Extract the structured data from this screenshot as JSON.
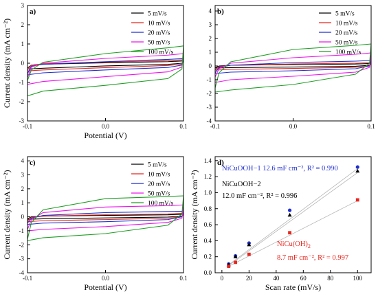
{
  "colors": {
    "s5": "#000000",
    "s10": "#e8261e",
    "s20": "#1f2fd1",
    "s50": "#ee11ee",
    "s100": "#1e9e22",
    "blue": "#1f2fd1",
    "red": "#e8261e",
    "black": "#000000"
  },
  "chart_data": [
    {
      "panel": "a)",
      "type": "line",
      "xlabel": "Potential (V)",
      "ylabel": "Current density (mA cm⁻²)",
      "xlim": [
        -0.1,
        0.1
      ],
      "ylim": [
        -3,
        3
      ],
      "xticks": [
        -0.1,
        0.0,
        0.1
      ],
      "xtick_labels": [
        "-0.1",
        "0.0",
        "0.1"
      ],
      "yticks": [
        -3,
        -2,
        -1,
        0,
        1,
        2,
        3
      ],
      "legend_position": "top-right",
      "series": [
        {
          "name": "5 mV/s",
          "color_key": "s5",
          "upper": [
            [
              -0.1,
              -0.25
            ],
            [
              -0.095,
              -0.1
            ],
            [
              -0.08,
              -0.05
            ],
            [
              0.0,
              0.02
            ],
            [
              0.08,
              0.08
            ],
            [
              0.1,
              0.12
            ]
          ],
          "lower": [
            [
              -0.1,
              -0.3
            ],
            [
              -0.08,
              -0.26
            ],
            [
              0.0,
              -0.14
            ],
            [
              0.08,
              -0.06
            ],
            [
              0.098,
              0.0
            ],
            [
              0.1,
              0.12
            ]
          ]
        },
        {
          "name": "10 mV/s",
          "color_key": "s10",
          "upper": [
            [
              -0.1,
              -0.35
            ],
            [
              -0.095,
              -0.1
            ],
            [
              -0.08,
              -0.03
            ],
            [
              0.0,
              0.06
            ],
            [
              0.08,
              0.13
            ],
            [
              0.1,
              0.18
            ]
          ],
          "lower": [
            [
              -0.1,
              -0.4
            ],
            [
              -0.08,
              -0.35
            ],
            [
              0.0,
              -0.23
            ],
            [
              0.08,
              -0.12
            ],
            [
              0.098,
              -0.05
            ],
            [
              0.1,
              0.18
            ]
          ]
        },
        {
          "name": "20 mV/s",
          "color_key": "s20",
          "upper": [
            [
              -0.1,
              -0.55
            ],
            [
              -0.095,
              -0.15
            ],
            [
              -0.08,
              -0.06
            ],
            [
              0.0,
              0.08
            ],
            [
              0.08,
              0.2
            ],
            [
              0.1,
              0.24
            ]
          ],
          "lower": [
            [
              -0.1,
              -0.6
            ],
            [
              -0.08,
              -0.5
            ],
            [
              0.0,
              -0.35
            ],
            [
              0.08,
              -0.22
            ],
            [
              0.098,
              -0.1
            ],
            [
              0.1,
              0.24
            ]
          ]
        },
        {
          "name": "50 mV/s",
          "color_key": "s50",
          "upper": [
            [
              -0.1,
              -0.75
            ],
            [
              -0.095,
              -0.2
            ],
            [
              -0.08,
              0.0
            ],
            [
              0.0,
              0.25
            ],
            [
              0.08,
              0.42
            ],
            [
              0.1,
              0.5
            ]
          ],
          "lower": [
            [
              -0.1,
              -1.1
            ],
            [
              -0.08,
              -0.95
            ],
            [
              0.0,
              -0.7
            ],
            [
              0.08,
              -0.45
            ],
            [
              0.098,
              -0.2
            ],
            [
              0.1,
              0.5
            ]
          ]
        },
        {
          "name": "100 mV/s",
          "color_key": "s100",
          "upper": [
            [
              -0.1,
              -0.9
            ],
            [
              -0.095,
              -0.35
            ],
            [
              -0.08,
              0.05
            ],
            [
              0.0,
              0.5
            ],
            [
              0.08,
              0.8
            ],
            [
              0.1,
              0.9
            ]
          ],
          "lower": [
            [
              -0.1,
              -1.7
            ],
            [
              -0.08,
              -1.45
            ],
            [
              0.0,
              -1.15
            ],
            [
              0.08,
              -0.8
            ],
            [
              0.098,
              -0.3
            ],
            [
              0.1,
              0.9
            ]
          ]
        }
      ]
    },
    {
      "panel": "b)",
      "type": "line",
      "xlabel": "",
      "ylabel": "",
      "xlim": [
        -0.1,
        0.1
      ],
      "ylim": [
        -4,
        4.4
      ],
      "xticks": [
        -0.1,
        0.0,
        0.1
      ],
      "xtick_labels": [
        "-0.1",
        "0.0",
        "0.1"
      ],
      "yticks": [
        -4,
        -3,
        -2,
        -1,
        0,
        1,
        2,
        3,
        4
      ],
      "legend_position": "top-right",
      "series": [
        {
          "name": "5 mV/s",
          "color_key": "s5",
          "upper": [
            [
              -0.1,
              -0.15
            ],
            [
              -0.095,
              0.0
            ],
            [
              -0.08,
              0.05
            ],
            [
              0.0,
              0.1
            ],
            [
              0.08,
              0.14
            ],
            [
              0.1,
              0.18
            ]
          ],
          "lower": [
            [
              -0.1,
              -0.15
            ],
            [
              -0.08,
              -0.12
            ],
            [
              0.0,
              -0.08
            ],
            [
              0.08,
              -0.02
            ],
            [
              0.098,
              0.05
            ],
            [
              0.1,
              0.18
            ]
          ]
        },
        {
          "name": "10 mV/s",
          "color_key": "s10",
          "upper": [
            [
              -0.1,
              -0.3
            ],
            [
              -0.095,
              -0.05
            ],
            [
              -0.08,
              0.05
            ],
            [
              0.0,
              0.15
            ],
            [
              0.08,
              0.2
            ],
            [
              0.1,
              0.25
            ]
          ],
          "lower": [
            [
              -0.1,
              -0.3
            ],
            [
              -0.08,
              -0.25
            ],
            [
              0.0,
              -0.18
            ],
            [
              0.08,
              -0.1
            ],
            [
              0.098,
              0.0
            ],
            [
              0.1,
              0.25
            ]
          ]
        },
        {
          "name": "20 mV/s",
          "color_key": "s20",
          "upper": [
            [
              -0.1,
              -0.5
            ],
            [
              -0.095,
              -0.1
            ],
            [
              -0.08,
              0.05
            ],
            [
              0.0,
              0.25
            ],
            [
              0.08,
              0.35
            ],
            [
              0.1,
              0.4
            ]
          ],
          "lower": [
            [
              -0.1,
              -0.55
            ],
            [
              -0.08,
              -0.45
            ],
            [
              0.0,
              -0.35
            ],
            [
              0.08,
              -0.2
            ],
            [
              0.098,
              0.0
            ],
            [
              0.1,
              0.4
            ]
          ]
        },
        {
          "name": "50 mV/s",
          "color_key": "s50",
          "upper": [
            [
              -0.1,
              -0.8
            ],
            [
              -0.095,
              -0.2
            ],
            [
              -0.08,
              0.2
            ],
            [
              0.0,
              0.6
            ],
            [
              0.08,
              0.85
            ],
            [
              0.1,
              0.95
            ]
          ],
          "lower": [
            [
              -0.1,
              -1.2
            ],
            [
              -0.08,
              -1.0
            ],
            [
              0.0,
              -0.75
            ],
            [
              0.08,
              -0.45
            ],
            [
              0.098,
              -0.1
            ],
            [
              0.1,
              0.95
            ]
          ]
        },
        {
          "name": "100 mV/s",
          "color_key": "s100",
          "upper": [
            [
              -0.1,
              -1.6
            ],
            [
              -0.095,
              -0.5
            ],
            [
              -0.08,
              0.3
            ],
            [
              0.0,
              1.2
            ],
            [
              0.08,
              1.5
            ],
            [
              0.1,
              1.6
            ]
          ],
          "lower": [
            [
              -0.1,
              -1.9
            ],
            [
              -0.08,
              -1.75
            ],
            [
              0.0,
              -1.35
            ],
            [
              0.08,
              -0.6
            ],
            [
              0.098,
              0.2
            ],
            [
              0.1,
              1.6
            ]
          ]
        }
      ]
    },
    {
      "panel": "c)",
      "type": "line",
      "xlabel": "Potential (V)",
      "ylabel": "Current density (mA cm⁻²)",
      "xlim": [
        -0.1,
        0.1
      ],
      "ylim": [
        -4,
        4.3
      ],
      "xticks": [
        -0.1,
        0.0,
        0.1
      ],
      "xtick_labels": [
        "-0.1",
        "0.0",
        "0.1"
      ],
      "yticks": [
        -4,
        -3,
        -2,
        -1,
        0,
        1,
        2,
        3,
        4
      ],
      "legend_position": "top-right",
      "series": [
        {
          "name": "5 mV/s",
          "color_key": "s5",
          "upper": [
            [
              -0.1,
              -0.15
            ],
            [
              -0.095,
              0.0
            ],
            [
              -0.08,
              0.05
            ],
            [
              0.0,
              0.1
            ],
            [
              0.08,
              0.14
            ],
            [
              0.1,
              0.18
            ]
          ],
          "lower": [
            [
              -0.1,
              -0.18
            ],
            [
              -0.08,
              -0.14
            ],
            [
              0.0,
              -0.08
            ],
            [
              0.08,
              -0.02
            ],
            [
              0.098,
              0.05
            ],
            [
              0.1,
              0.18
            ]
          ]
        },
        {
          "name": "10 mV/s",
          "color_key": "s10",
          "upper": [
            [
              -0.1,
              -0.3
            ],
            [
              -0.095,
              -0.05
            ],
            [
              -0.08,
              0.05
            ],
            [
              0.0,
              0.15
            ],
            [
              0.08,
              0.2
            ],
            [
              0.1,
              0.25
            ]
          ],
          "lower": [
            [
              -0.1,
              -0.35
            ],
            [
              -0.08,
              -0.28
            ],
            [
              0.0,
              -0.2
            ],
            [
              0.08,
              -0.1
            ],
            [
              0.098,
              0.0
            ],
            [
              0.1,
              0.25
            ]
          ]
        },
        {
          "name": "20 mV/s",
          "color_key": "s20",
          "upper": [
            [
              -0.1,
              -0.45
            ],
            [
              -0.095,
              -0.1
            ],
            [
              -0.08,
              0.1
            ],
            [
              0.0,
              0.3
            ],
            [
              0.08,
              0.38
            ],
            [
              0.1,
              0.4
            ]
          ],
          "lower": [
            [
              -0.1,
              -0.55
            ],
            [
              -0.08,
              -0.45
            ],
            [
              0.0,
              -0.35
            ],
            [
              0.08,
              -0.2
            ],
            [
              0.098,
              0.0
            ],
            [
              0.1,
              0.4
            ]
          ]
        },
        {
          "name": "50 mV/s",
          "color_key": "s50",
          "upper": [
            [
              -0.1,
              -0.9
            ],
            [
              -0.095,
              -0.2
            ],
            [
              -0.08,
              0.3
            ],
            [
              0.0,
              0.7
            ],
            [
              0.08,
              0.8
            ],
            [
              0.1,
              0.85
            ]
          ],
          "lower": [
            [
              -0.1,
              -1.0
            ],
            [
              -0.08,
              -0.9
            ],
            [
              0.0,
              -0.7
            ],
            [
              0.08,
              -0.4
            ],
            [
              0.098,
              -0.1
            ],
            [
              0.1,
              0.85
            ]
          ]
        },
        {
          "name": "100 mV/s",
          "color_key": "s100",
          "upper": [
            [
              -0.1,
              -1.6
            ],
            [
              -0.095,
              -0.4
            ],
            [
              -0.08,
              0.5
            ],
            [
              0.0,
              1.3
            ],
            [
              0.08,
              1.45
            ],
            [
              0.1,
              1.5
            ]
          ],
          "lower": [
            [
              -0.1,
              -1.7
            ],
            [
              -0.08,
              -1.5
            ],
            [
              0.0,
              -1.2
            ],
            [
              0.08,
              -0.6
            ],
            [
              0.098,
              0.2
            ],
            [
              0.1,
              1.5
            ]
          ]
        }
      ]
    },
    {
      "panel": "d)",
      "type": "scatter",
      "xlabel": "Scan rate (mV/s)",
      "ylabel": "Current density (mA cm⁻²)",
      "xlim": [
        -5,
        110
      ],
      "ylim": [
        0,
        1.45
      ],
      "xticks": [
        0,
        20,
        40,
        60,
        80,
        100
      ],
      "yticks": [
        0.0,
        0.2,
        0.4,
        0.6,
        0.8,
        1.0,
        1.2,
        1.4
      ],
      "ytick_labels": [
        "0.0",
        "0.2",
        "0.4",
        "0.6",
        "0.8",
        "1.0",
        "1.2",
        "1.4"
      ],
      "series": [
        {
          "color_key": "blue",
          "marker": "circle",
          "x": [
            5,
            10,
            20,
            50,
            100
          ],
          "y": [
            0.11,
            0.21,
            0.37,
            0.78,
            1.32
          ],
          "fit": [
            [
              5,
              0.1
            ],
            [
              100,
              1.3
            ]
          ]
        },
        {
          "color_key": "black",
          "marker": "triangle",
          "x": [
            5,
            10,
            20,
            50,
            100
          ],
          "y": [
            0.1,
            0.2,
            0.35,
            0.72,
            1.27
          ],
          "fit": [
            [
              5,
              0.09
            ],
            [
              100,
              1.25
            ]
          ]
        },
        {
          "color_key": "red",
          "marker": "square",
          "x": [
            5,
            10,
            20,
            50,
            100
          ],
          "y": [
            0.08,
            0.13,
            0.23,
            0.5,
            0.91
          ],
          "fit": [
            [
              5,
              0.08
            ],
            [
              100,
              0.9
            ]
          ]
        }
      ],
      "annotations": {
        "blue_label": "NiCuOOH−1 12.6 mF cm⁻², R² = 0.990",
        "black_name": "NiCuOOH−2",
        "black_stats": "12.0 mF cm⁻², R² = 0.996",
        "red_name_main": "NiCu(OH)",
        "red_name_sub": "2",
        "red_stats": "8.7 mF cm⁻², R² = 0.997"
      }
    }
  ]
}
